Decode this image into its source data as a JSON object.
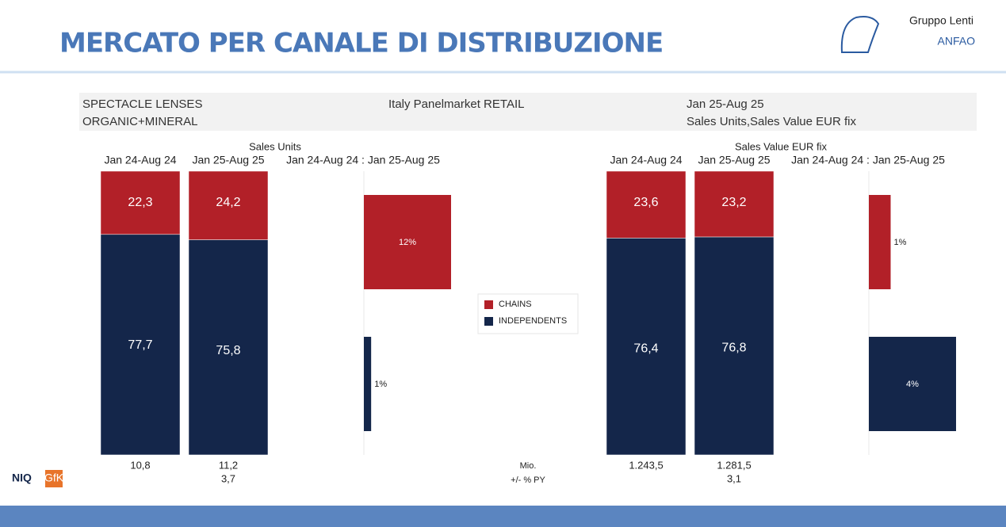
{
  "header": {
    "title": "MERCATO PER CANALE DI DISTRIBUZIONE",
    "logo_top": "Gruppo Lenti",
    "logo_name": "ANFAO"
  },
  "info": {
    "line1_left": "SPECTACLE LENSES",
    "line2_left": "ORGANIC+MINERAL",
    "center": "Italy Panelmarket RETAIL",
    "line1_right": "Jan 25-Aug 25",
    "line2_right": "Sales Units,Sales Value EUR fix"
  },
  "legend": [
    {
      "name": "CHAINS",
      "color": "#b22028"
    },
    {
      "name": "INDEPENDENTS",
      "color": "#14264a"
    }
  ],
  "row_labels": {
    "totals": "Mio.",
    "change": "+/- % PY"
  },
  "footer": {
    "brand1": "NIQ",
    "brand2": "GfK"
  },
  "chart_data": [
    {
      "type": "bar",
      "stacked": true,
      "title": "Sales Units",
      "categories": [
        "Jan 24-Aug 24",
        "Jan 25-Aug 25"
      ],
      "series": [
        {
          "values": [
            22.3,
            24.2
          ],
          "value_labels": [
            "22,3",
            "24,2"
          ]
        },
        {
          "values": [
            77.7,
            75.8
          ],
          "value_labels": [
            "77,7",
            "75,8"
          ]
        }
      ],
      "ylim": [
        0,
        100
      ],
      "totals": {
        "values": [
          10.8,
          11.2
        ],
        "value_labels": [
          "10,8",
          "11,2"
        ]
      },
      "change": {
        "values": [
          null,
          3.7
        ],
        "value_labels": [
          null,
          "3,7"
        ]
      }
    },
    {
      "type": "hbar",
      "title": "Jan 24-Aug 24 : Jan 25-Aug 25",
      "values": [
        12,
        1
      ],
      "value_labels": [
        "12%",
        "1%"
      ],
      "xlim": [
        0,
        12
      ]
    },
    {
      "type": "bar",
      "stacked": true,
      "title": "Sales Value EUR fix",
      "categories": [
        "Jan 24-Aug 24",
        "Jan 25-Aug 25"
      ],
      "series": [
        {
          "values": [
            23.6,
            23.2
          ],
          "value_labels": [
            "23,6",
            "23,2"
          ]
        },
        {
          "values": [
            76.4,
            76.8
          ],
          "value_labels": [
            "76,4",
            "76,8"
          ]
        }
      ],
      "ylim": [
        0,
        100
      ],
      "totals": {
        "values": [
          1243.5,
          1281.5
        ],
        "value_labels": [
          "1.243,5",
          "1.281,5"
        ]
      },
      "change": {
        "values": [
          null,
          3.1
        ],
        "value_labels": [
          null,
          "3,1"
        ]
      }
    },
    {
      "type": "hbar",
      "title": "Jan 24-Aug 24 : Jan 25-Aug 25",
      "values": [
        1,
        4
      ],
      "value_labels": [
        "1%",
        "4%"
      ],
      "xlim": [
        0,
        4
      ]
    }
  ]
}
